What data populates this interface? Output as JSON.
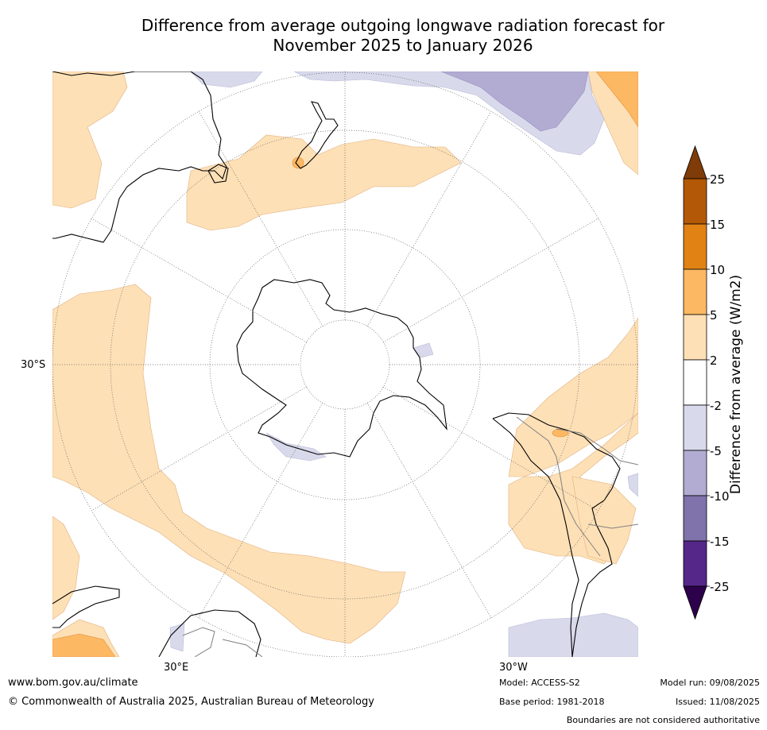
{
  "title": {
    "line1": "Difference from average outgoing longwave radiation forecast for",
    "line2": "November 2025 to January 2026"
  },
  "map": {
    "projection": "south-polar-stereographic",
    "lat_label": "30°S",
    "lon_labels": [
      "30°E",
      "30°W"
    ],
    "land_color": "#ffffff",
    "coast_color": "#000000",
    "border_color": "#808080",
    "grid_color": "#808080"
  },
  "colorbar": {
    "title": "Difference from average (W/m2)",
    "ticks": [
      "25",
      "15",
      "10",
      "5",
      "2",
      "-2",
      "-5",
      "-10",
      "-15",
      "-25"
    ],
    "bins": [
      {
        "range": "above 25",
        "color": "#7f3b08"
      },
      {
        "range": "15 to 25",
        "color": "#b35806"
      },
      {
        "range": "10 to 15",
        "color": "#e08214"
      },
      {
        "range": "5 to 10",
        "color": "#fdb863"
      },
      {
        "range": "2 to 5",
        "color": "#fee0b6"
      },
      {
        "range": "-2 to 2",
        "color": "#ffffff"
      },
      {
        "range": "-5 to -2",
        "color": "#d8daeb"
      },
      {
        "range": "-10 to -5",
        "color": "#b2abd2"
      },
      {
        "range": "-15 to -10",
        "color": "#8073ac"
      },
      {
        "range": "-25 to -15",
        "color": "#542788"
      },
      {
        "range": "below -25",
        "color": "#2d004b"
      }
    ]
  },
  "footer": {
    "website": "www.bom.gov.au/climate",
    "copyright": "© Commonwealth of Australia 2025, Australian Bureau of Meteorology",
    "model": "Model: ACCESS-S2",
    "base_period": "Base period: 1981-2018",
    "model_run": "Model run: 09/08/2025",
    "issued": "Issued: 11/08/2025",
    "disclaimer": "Boundaries are not considered authoritative"
  }
}
